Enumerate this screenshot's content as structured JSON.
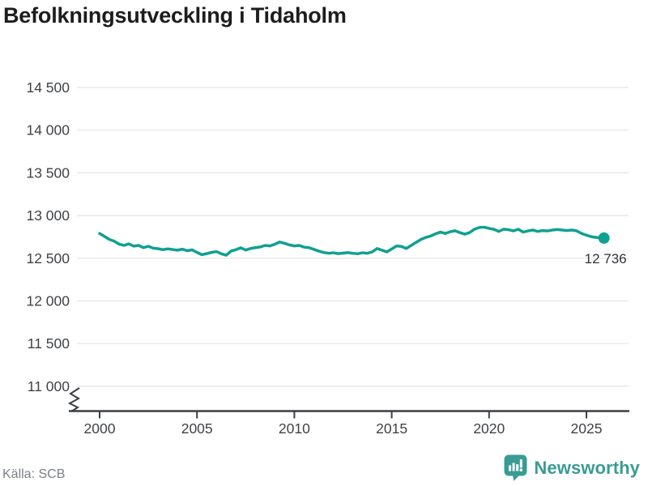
{
  "header": {
    "title": "Befolkningsutveckling i Tidaholm"
  },
  "footer": {
    "source": "Källa: SCB",
    "brand": "Newsworthy"
  },
  "logo": {
    "text": "Newsworthy",
    "color": "#3a9b95",
    "icon": "newsworthy-bar-chart-bubble-icon"
  },
  "chart_data": {
    "type": "line",
    "title": "Befolkningsutveckling i Tidaholm",
    "xlabel": "",
    "ylabel": "",
    "legend_position": "none",
    "grid": "horizontal-only",
    "axis_break_at_bottom": true,
    "ylim": [
      11000,
      14500
    ],
    "yticks": [
      14500,
      14000,
      13500,
      13000,
      12500,
      12000,
      11500,
      11000
    ],
    "ytick_labels": [
      "14 500",
      "14 000",
      "13 500",
      "13 000",
      "12 500",
      "12 000",
      "11 500",
      "11 000"
    ],
    "xticks": [
      2000,
      2005,
      2010,
      2015,
      2020,
      2025
    ],
    "xtick_labels": [
      "2000",
      "2005",
      "2010",
      "2015",
      "2020",
      "2025"
    ],
    "end_label": "12 736",
    "end_value": 12736,
    "line_color": "#10a091",
    "colors": {
      "grid": "#e4e4e4",
      "axis": "#3b3e42",
      "tick_text": "#3f4246",
      "end_label_text": "#2f3237"
    },
    "x": [
      2000,
      2000.25,
      2000.5,
      2000.75,
      2001,
      2001.25,
      2001.5,
      2001.75,
      2002,
      2002.25,
      2002.5,
      2002.75,
      2003,
      2003.25,
      2003.5,
      2003.75,
      2004,
      2004.25,
      2004.5,
      2004.75,
      2005,
      2005.25,
      2005.5,
      2005.75,
      2006,
      2006.25,
      2006.5,
      2006.75,
      2007,
      2007.25,
      2007.5,
      2007.75,
      2008,
      2008.25,
      2008.5,
      2008.75,
      2009,
      2009.25,
      2009.5,
      2009.75,
      2010,
      2010.25,
      2010.5,
      2010.75,
      2011,
      2011.25,
      2011.5,
      2011.75,
      2012,
      2012.25,
      2012.5,
      2012.75,
      2013,
      2013.25,
      2013.5,
      2013.75,
      2014,
      2014.25,
      2014.5,
      2014.75,
      2015,
      2015.25,
      2015.5,
      2015.75,
      2016,
      2016.25,
      2016.5,
      2016.75,
      2017,
      2017.25,
      2017.5,
      2017.75,
      2018,
      2018.25,
      2018.5,
      2018.75,
      2019,
      2019.25,
      2019.5,
      2019.75,
      2020,
      2020.25,
      2020.5,
      2020.75,
      2021,
      2021.25,
      2021.5,
      2021.75,
      2022,
      2022.25,
      2022.5,
      2022.75,
      2023,
      2023.25,
      2023.5,
      2023.75,
      2024,
      2024.25,
      2024.5,
      2024.75,
      2025,
      2025.25,
      2025.5,
      2025.9
    ],
    "values": [
      12790,
      12755,
      12720,
      12700,
      12665,
      12650,
      12668,
      12642,
      12650,
      12624,
      12640,
      12618,
      12612,
      12600,
      12610,
      12602,
      12594,
      12606,
      12588,
      12598,
      12568,
      12542,
      12554,
      12568,
      12578,
      12552,
      12536,
      12584,
      12600,
      12622,
      12596,
      12614,
      12624,
      12632,
      12650,
      12644,
      12664,
      12690,
      12674,
      12656,
      12644,
      12650,
      12630,
      12624,
      12604,
      12584,
      12568,
      12558,
      12564,
      12554,
      12560,
      12566,
      12558,
      12552,
      12564,
      12558,
      12574,
      12614,
      12594,
      12574,
      12608,
      12644,
      12638,
      12614,
      12650,
      12686,
      12720,
      12744,
      12760,
      12786,
      12806,
      12790,
      12810,
      12822,
      12800,
      12782,
      12800,
      12840,
      12860,
      12864,
      12850,
      12838,
      12814,
      12840,
      12834,
      12820,
      12840,
      12806,
      12820,
      12830,
      12814,
      12824,
      12820,
      12830,
      12836,
      12830,
      12824,
      12830,
      12820,
      12790,
      12770,
      12752,
      12744,
      12736
    ]
  }
}
